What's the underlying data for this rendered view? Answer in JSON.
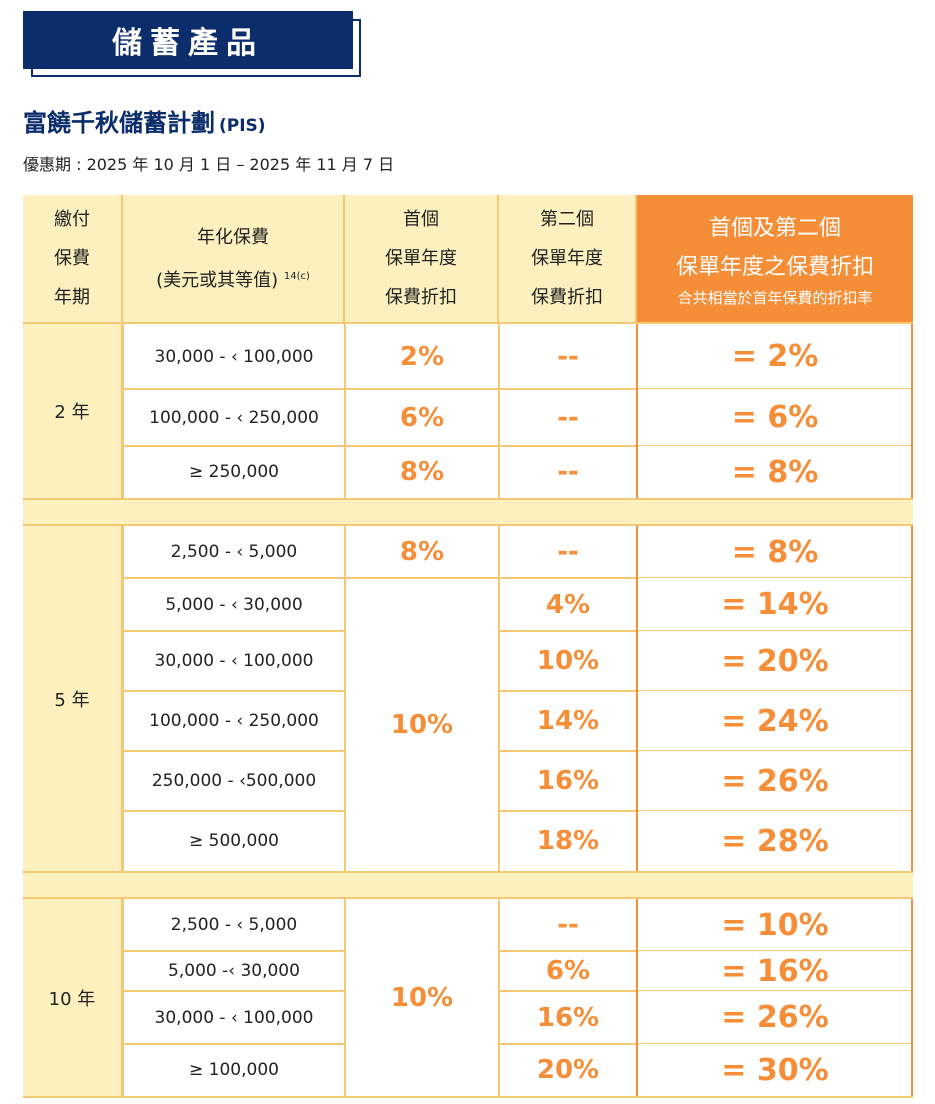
{
  "header": {
    "tab_title": "儲蓄產品",
    "plan_title": "富饒千秋儲蓄計劃",
    "plan_code": "(PIS)",
    "promo_period": "優惠期 : 2025 年 10 月 1 日 – 2025 年 11 月 7 日"
  },
  "table": {
    "columns": {
      "term": [
        "繳付",
        "保費",
        "年期"
      ],
      "premium": [
        "年化保費",
        "(美元或其等值)"
      ],
      "premium_sup": "14(c)",
      "first": [
        "首個",
        "保單年度",
        "保費折扣"
      ],
      "second": [
        "第二個",
        "保單年度",
        "保費折扣"
      ],
      "total": [
        "首個及第二個",
        "保單年度之保費折扣"
      ],
      "total_note": "合共相當於首年保費的折扣率"
    },
    "groups": [
      {
        "term": "2 年",
        "first_merged": "",
        "rows": [
          {
            "range": "30,000 - ‹ 100,000",
            "first": "2%",
            "second": "--",
            "total": "= 2%"
          },
          {
            "range": "100,000 - ‹ 250,000",
            "first": "6%",
            "second": "--",
            "total": "= 6%"
          },
          {
            "range": "≥ 250,000",
            "first": "8%",
            "second": "--",
            "total": "= 8%"
          }
        ]
      },
      {
        "term": "5 年",
        "first_merged": "10%",
        "rows": [
          {
            "range": "2,500 - ‹ 5,000",
            "first": "8%",
            "second": "--",
            "total": "= 8%"
          },
          {
            "range": "5,000 - ‹ 30,000",
            "first": "",
            "second": "4%",
            "total": "= 14%"
          },
          {
            "range": "30,000 - ‹ 100,000",
            "first": "",
            "second": "10%",
            "total": "= 20%"
          },
          {
            "range": "100,000 - ‹ 250,000",
            "first": "",
            "second": "14%",
            "total": "= 24%"
          },
          {
            "range": "250,000 - ‹500,000",
            "first": "",
            "second": "16%",
            "total": "= 26%"
          },
          {
            "range": "≥ 500,000",
            "first": "",
            "second": "18%",
            "total": "= 28%"
          }
        ]
      },
      {
        "term": "10 年",
        "first_merged": "10%",
        "rows": [
          {
            "range": "2,500 - ‹ 5,000",
            "first": "",
            "second": "--",
            "total": "= 10%"
          },
          {
            "range": "5,000 -‹ 30,000",
            "first": "",
            "second": "6%",
            "total": "= 16%"
          },
          {
            "range": "30,000 - ‹ 100,000",
            "first": "",
            "second": "16%",
            "total": "= 26%"
          },
          {
            "range": "≥ 100,000",
            "first": "",
            "second": "20%",
            "total": "= 30%"
          }
        ]
      }
    ]
  }
}
